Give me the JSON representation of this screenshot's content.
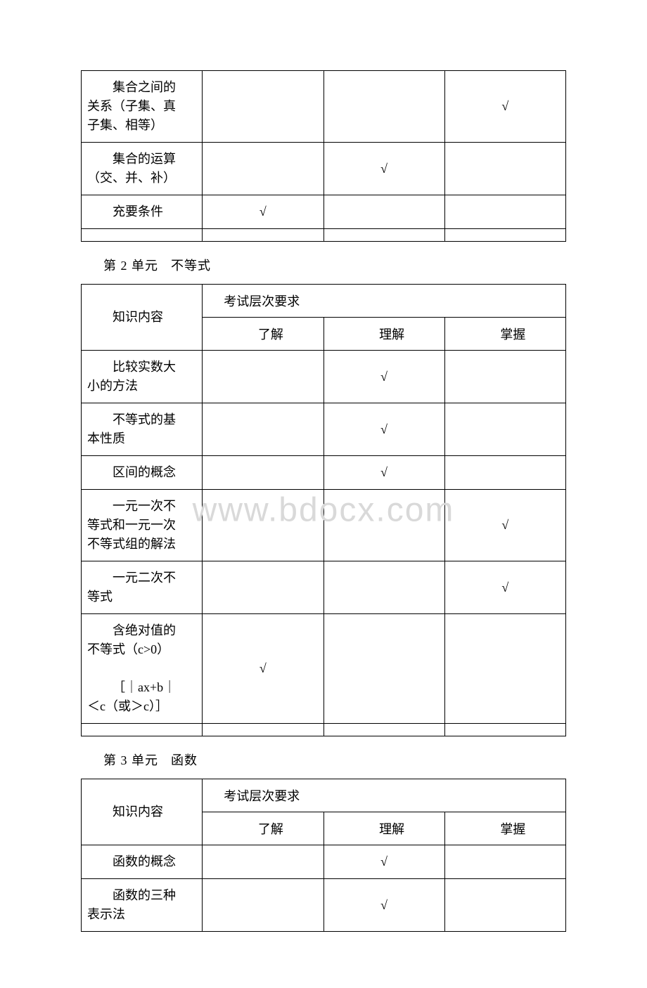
{
  "checkmark": "√",
  "watermark": "www.bdocx.com",
  "col_headers": {
    "content": "知识内容",
    "requirement": "考试层次要求",
    "level1": "了解",
    "level2": "理解",
    "level3": "掌握"
  },
  "table1": {
    "rows": [
      {
        "content_lines": [
          "集合之间的",
          "关系（子集、真",
          "子集、相等）"
        ],
        "marks": [
          "",
          "",
          "√"
        ]
      },
      {
        "content_lines": [
          "集合的运算",
          "（交、并、补）"
        ],
        "marks": [
          "",
          "√",
          ""
        ]
      },
      {
        "content_lines": [
          "充要条件"
        ],
        "marks": [
          "√",
          "",
          ""
        ]
      }
    ]
  },
  "unit2": {
    "title_prefix": "第 2 单元",
    "title_name": "不等式",
    "rows": [
      {
        "content_lines": [
          "比较实数大",
          "小的方法"
        ],
        "marks": [
          "",
          "√",
          ""
        ]
      },
      {
        "content_lines": [
          "不等式的基",
          "本性质"
        ],
        "marks": [
          "",
          "√",
          ""
        ]
      },
      {
        "content_lines": [
          "区间的概念"
        ],
        "marks": [
          "",
          "√",
          ""
        ]
      },
      {
        "content_lines": [
          "一元一次不",
          "等式和一元一次",
          "不等式组的解法"
        ],
        "marks": [
          "",
          "",
          "√"
        ]
      },
      {
        "content_lines": [
          "一元二次不",
          "等式"
        ],
        "marks": [
          "",
          "",
          "√"
        ]
      },
      {
        "content_lines": [
          "含绝对值的",
          "不等式（c>0）",
          "",
          "［｜ax+b｜",
          "＜c（或＞c）］"
        ],
        "marks": [
          "√",
          "",
          ""
        ]
      }
    ]
  },
  "unit3": {
    "title_prefix": "第 3 单元",
    "title_name": "函数",
    "rows": [
      {
        "content_lines": [
          "函数的概念"
        ],
        "marks": [
          "",
          "√",
          ""
        ]
      },
      {
        "content_lines": [
          "函数的三种",
          "表示法"
        ],
        "marks": [
          "",
          "√",
          ""
        ]
      }
    ]
  }
}
